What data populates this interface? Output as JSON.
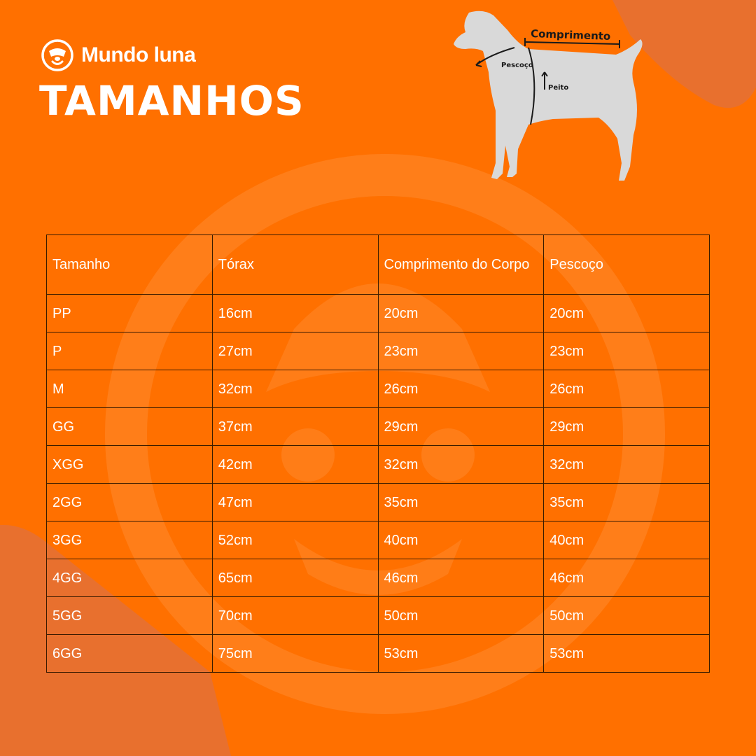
{
  "brand": {
    "name": "Mundo luna"
  },
  "title": "TAMANHOS",
  "diagram": {
    "labels": {
      "length": "Comprimento",
      "neck": "Pescoço",
      "chest": "Peito"
    }
  },
  "table": {
    "headers": [
      "Tamanho",
      "Tórax",
      "Comprimento do Corpo",
      "Pescoço"
    ],
    "rows": [
      [
        "PP",
        "16cm",
        "20cm",
        "20cm"
      ],
      [
        "P",
        "27cm",
        "23cm",
        "23cm"
      ],
      [
        "M",
        "32cm",
        "26cm",
        "26cm"
      ],
      [
        "GG",
        "37cm",
        "29cm",
        "29cm"
      ],
      [
        "XGG",
        "42cm",
        "32cm",
        "32cm"
      ],
      [
        "2GG",
        "47cm",
        "35cm",
        "35cm"
      ],
      [
        "3GG",
        "52cm",
        "40cm",
        "40cm"
      ],
      [
        "4GG",
        "65cm",
        "46cm",
        "46cm"
      ],
      [
        "5GG",
        "70cm",
        "50cm",
        "50cm"
      ],
      [
        "6GG",
        "75cm",
        "53cm",
        "53cm"
      ]
    ]
  },
  "colors": {
    "background": "#ff7000",
    "accent_shape": "#e8702e",
    "text": "#ffffff",
    "table_border": "#3a1a00"
  }
}
